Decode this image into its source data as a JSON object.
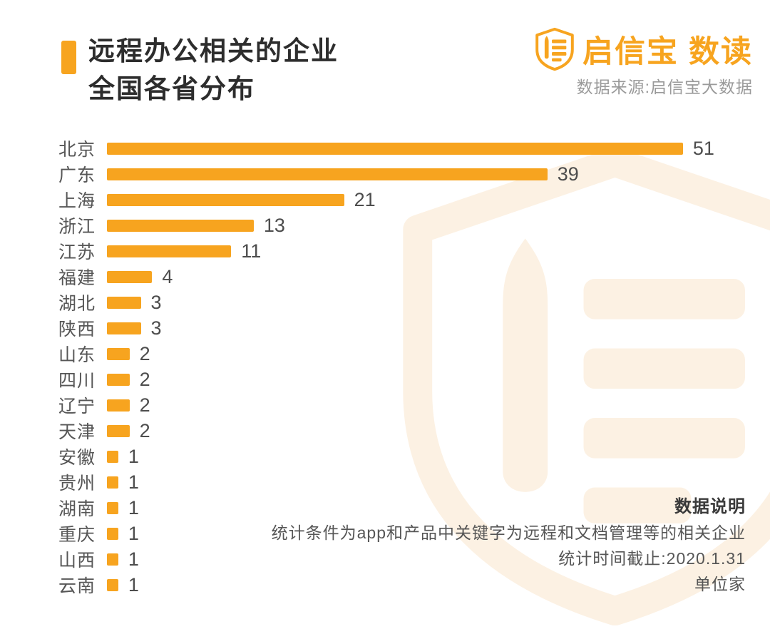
{
  "header": {
    "title_line1": "远程办公相关的企业",
    "title_line2": "全国各省分布",
    "brand_name": "启信宝",
    "brand_suffix": "数读",
    "source": "数据来源:启信宝大数据"
  },
  "chart_data": {
    "type": "bar",
    "orientation": "horizontal",
    "title": "远程办公相关的企业全国各省分布",
    "categories": [
      "北京",
      "广东",
      "上海",
      "浙江",
      "江苏",
      "福建",
      "湖北",
      "陕西",
      "山东",
      "四川",
      "辽宁",
      "天津",
      "安徽",
      "贵州",
      "湖南",
      "重庆",
      "山西",
      "云南"
    ],
    "values": [
      51,
      39,
      21,
      13,
      11,
      4,
      3,
      3,
      2,
      2,
      2,
      2,
      1,
      1,
      1,
      1,
      1,
      1
    ],
    "value_labels_shown": true,
    "xlabel": "",
    "ylabel": "",
    "xlim": [
      0,
      57
    ],
    "grid": false,
    "legend": false,
    "bar_color": "#F7A41F",
    "unit": "家"
  },
  "notes": {
    "heading": "数据说明",
    "line1": "统计条件为app和产品中关键字为远程和文档管理等的相关企业",
    "line2": "统计时间截止:2020.1.31",
    "line3": "单位家"
  },
  "icons": {
    "brand_logo": "shield-logo-icon",
    "watermark": "shield-logo-watermark"
  },
  "colors": {
    "accent": "#F7A41F",
    "watermark": "#FCF1E3",
    "title_text": "#2d2d2d",
    "label_text": "#565656",
    "source_text": "#9a9a9a",
    "background": "#ffffff"
  }
}
